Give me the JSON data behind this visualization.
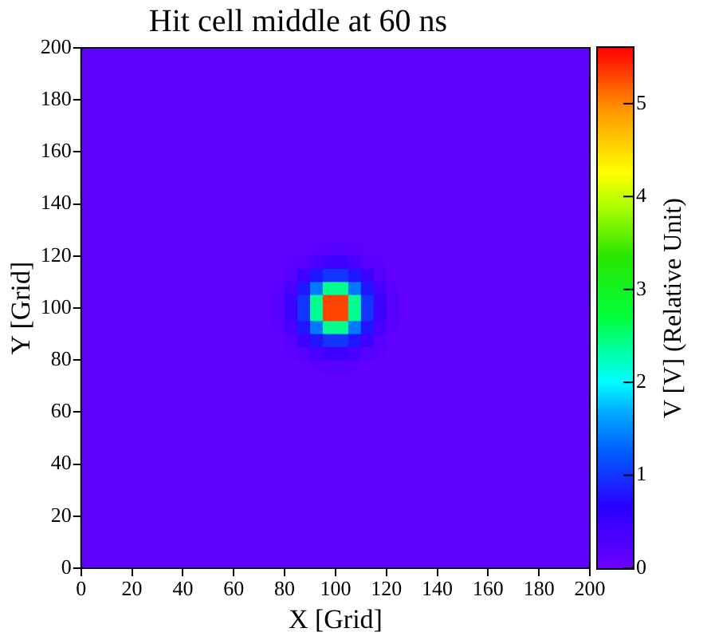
{
  "chart_data": {
    "type": "heatmap",
    "title": "Hit cell middle at 60 ns",
    "xlabel": "X [Grid]",
    "ylabel": "Y [Grid]",
    "clabel": "V [V] (Relative Unit)",
    "xlim": [
      0,
      200
    ],
    "xticks": [
      0,
      20,
      40,
      60,
      80,
      100,
      120,
      140,
      160,
      180,
      200
    ],
    "ylim": [
      0,
      200
    ],
    "yticks": [
      0,
      20,
      40,
      60,
      80,
      100,
      120,
      140,
      160,
      180,
      200
    ],
    "clim": [
      0,
      5.6
    ],
    "cticks": [
      0,
      1,
      2,
      3,
      4,
      5
    ],
    "x": [
      2.5,
      7.5,
      12.5,
      17.5,
      22.5,
      27.5,
      32.5,
      37.5,
      42.5,
      47.5,
      52.5,
      57.5,
      62.5,
      67.5,
      72.5,
      77.5,
      82.5,
      87.5,
      92.5,
      97.5,
      102.5,
      107.5,
      112.5,
      117.5,
      122.5,
      127.5,
      132.5,
      137.5,
      142.5,
      147.5,
      152.5,
      157.5,
      162.5,
      167.5,
      172.5,
      177.5,
      182.5,
      187.5,
      192.5,
      197.5
    ],
    "y": [
      197.5,
      192.5,
      187.5,
      182.5,
      177.5,
      172.5,
      167.5,
      162.5,
      157.5,
      152.5,
      147.5,
      142.5,
      137.5,
      132.5,
      127.5,
      122.5,
      117.5,
      112.5,
      107.5,
      102.5,
      97.5,
      92.5,
      87.5,
      82.5,
      77.5,
      72.5,
      67.5,
      62.5,
      57.5,
      52.5,
      47.5,
      42.5,
      37.5,
      32.5,
      27.5,
      22.5,
      17.5,
      12.5,
      7.5,
      2.5
    ],
    "cells": [
      [
        0.1,
        0.1,
        0.1,
        0.1,
        0.1,
        0.1,
        0.1,
        0.1,
        0.1,
        0.1,
        0.1,
        0.1,
        0.1,
        0.1,
        0.1,
        0.1,
        0.1,
        0.1,
        0.1,
        0.1,
        0.1,
        0.1,
        0.1,
        0.1,
        0.1,
        0.1,
        0.1,
        0.1,
        0.1,
        0.1,
        0.1,
        0.1,
        0.1,
        0.1,
        0.1,
        0.1,
        0.1,
        0.1,
        0.1,
        0.1
      ],
      [
        0.1,
        0.1,
        0.1,
        0.1,
        0.1,
        0.1,
        0.1,
        0.1,
        0.1,
        0.1,
        0.1,
        0.1,
        0.1,
        0.1,
        0.1,
        0.1,
        0.1,
        0.1,
        0.1,
        0.1,
        0.1,
        0.1,
        0.1,
        0.1,
        0.1,
        0.1,
        0.1,
        0.1,
        0.1,
        0.1,
        0.1,
        0.1,
        0.1,
        0.1,
        0.1,
        0.1,
        0.1,
        0.1,
        0.1,
        0.1
      ],
      [
        0.1,
        0.1,
        0.1,
        0.1,
        0.1,
        0.1,
        0.1,
        0.1,
        0.1,
        0.1,
        0.1,
        0.1,
        0.1,
        0.1,
        0.1,
        0.1,
        0.1,
        0.1,
        0.1,
        0.1,
        0.1,
        0.1,
        0.1,
        0.1,
        0.1,
        0.1,
        0.1,
        0.1,
        0.1,
        0.1,
        0.1,
        0.1,
        0.1,
        0.1,
        0.1,
        0.1,
        0.1,
        0.1,
        0.1,
        0.1
      ],
      [
        0.1,
        0.1,
        0.1,
        0.1,
        0.1,
        0.1,
        0.1,
        0.1,
        0.1,
        0.1,
        0.1,
        0.1,
        0.1,
        0.1,
        0.1,
        0.1,
        0.1,
        0.1,
        0.1,
        0.1,
        0.1,
        0.1,
        0.1,
        0.1,
        0.1,
        0.1,
        0.1,
        0.1,
        0.1,
        0.1,
        0.1,
        0.1,
        0.1,
        0.1,
        0.1,
        0.1,
        0.1,
        0.1,
        0.1,
        0.1
      ],
      [
        0.1,
        0.1,
        0.1,
        0.1,
        0.1,
        0.1,
        0.1,
        0.1,
        0.1,
        0.1,
        0.1,
        0.1,
        0.1,
        0.1,
        0.1,
        0.1,
        0.1,
        0.1,
        0.1,
        0.1,
        0.1,
        0.1,
        0.1,
        0.1,
        0.1,
        0.1,
        0.1,
        0.1,
        0.1,
        0.1,
        0.1,
        0.1,
        0.1,
        0.1,
        0.1,
        0.1,
        0.1,
        0.1,
        0.1,
        0.1
      ],
      [
        0.1,
        0.1,
        0.1,
        0.1,
        0.1,
        0.1,
        0.1,
        0.1,
        0.1,
        0.1,
        0.1,
        0.1,
        0.1,
        0.1,
        0.1,
        0.1,
        0.1,
        0.1,
        0.1,
        0.1,
        0.1,
        0.1,
        0.1,
        0.1,
        0.1,
        0.1,
        0.1,
        0.1,
        0.1,
        0.1,
        0.1,
        0.1,
        0.1,
        0.1,
        0.1,
        0.1,
        0.1,
        0.1,
        0.1,
        0.1
      ],
      [
        0.1,
        0.1,
        0.1,
        0.1,
        0.1,
        0.1,
        0.1,
        0.1,
        0.1,
        0.1,
        0.1,
        0.1,
        0.1,
        0.1,
        0.1,
        0.1,
        0.1,
        0.1,
        0.1,
        0.1,
        0.1,
        0.1,
        0.1,
        0.1,
        0.1,
        0.1,
        0.1,
        0.1,
        0.1,
        0.1,
        0.1,
        0.1,
        0.1,
        0.1,
        0.1,
        0.1,
        0.1,
        0.1,
        0.1,
        0.1
      ],
      [
        0.1,
        0.1,
        0.1,
        0.1,
        0.1,
        0.1,
        0.1,
        0.1,
        0.1,
        0.1,
        0.1,
        0.1,
        0.1,
        0.1,
        0.1,
        0.1,
        0.1,
        0.1,
        0.1,
        0.1,
        0.1,
        0.1,
        0.1,
        0.1,
        0.1,
        0.1,
        0.1,
        0.1,
        0.1,
        0.1,
        0.1,
        0.1,
        0.1,
        0.1,
        0.1,
        0.1,
        0.1,
        0.1,
        0.1,
        0.1
      ],
      [
        0.1,
        0.1,
        0.1,
        0.1,
        0.1,
        0.1,
        0.1,
        0.1,
        0.1,
        0.1,
        0.1,
        0.1,
        0.1,
        0.1,
        0.1,
        0.1,
        0.1,
        0.1,
        0.1,
        0.1,
        0.1,
        0.1,
        0.1,
        0.1,
        0.1,
        0.1,
        0.1,
        0.1,
        0.1,
        0.1,
        0.1,
        0.1,
        0.1,
        0.1,
        0.1,
        0.1,
        0.1,
        0.1,
        0.1,
        0.1
      ],
      [
        0.1,
        0.1,
        0.1,
        0.1,
        0.1,
        0.1,
        0.1,
        0.1,
        0.1,
        0.1,
        0.1,
        0.1,
        0.1,
        0.1,
        0.1,
        0.1,
        0.1,
        0.1,
        0.1,
        0.1,
        0.1,
        0.1,
        0.1,
        0.1,
        0.1,
        0.1,
        0.1,
        0.1,
        0.1,
        0.1,
        0.1,
        0.1,
        0.1,
        0.1,
        0.1,
        0.1,
        0.1,
        0.1,
        0.1,
        0.1
      ],
      [
        0.1,
        0.1,
        0.1,
        0.1,
        0.1,
        0.1,
        0.1,
        0.1,
        0.1,
        0.1,
        0.1,
        0.1,
        0.1,
        0.1,
        0.1,
        0.1,
        0.1,
        0.1,
        0.1,
        0.1,
        0.1,
        0.1,
        0.1,
        0.1,
        0.1,
        0.1,
        0.1,
        0.1,
        0.1,
        0.1,
        0.1,
        0.1,
        0.1,
        0.1,
        0.1,
        0.1,
        0.1,
        0.1,
        0.1,
        0.1
      ],
      [
        0.1,
        0.1,
        0.1,
        0.1,
        0.1,
        0.1,
        0.1,
        0.1,
        0.1,
        0.1,
        0.1,
        0.1,
        0.1,
        0.1,
        0.1,
        0.1,
        0.1,
        0.1,
        0.1,
        0.1,
        0.1,
        0.1,
        0.1,
        0.1,
        0.1,
        0.1,
        0.1,
        0.1,
        0.1,
        0.1,
        0.1,
        0.1,
        0.1,
        0.1,
        0.1,
        0.1,
        0.1,
        0.1,
        0.1,
        0.1
      ],
      [
        0.1,
        0.1,
        0.1,
        0.1,
        0.1,
        0.1,
        0.1,
        0.1,
        0.1,
        0.1,
        0.1,
        0.1,
        0.1,
        0.1,
        0.1,
        0.1,
        0.1,
        0.1,
        0.1,
        0.1,
        0.1,
        0.1,
        0.1,
        0.1,
        0.1,
        0.1,
        0.1,
        0.1,
        0.1,
        0.1,
        0.1,
        0.1,
        0.1,
        0.1,
        0.1,
        0.1,
        0.1,
        0.1,
        0.1,
        0.1
      ],
      [
        0.1,
        0.1,
        0.1,
        0.1,
        0.1,
        0.1,
        0.1,
        0.1,
        0.1,
        0.1,
        0.1,
        0.1,
        0.1,
        0.1,
        0.1,
        0.1,
        0.1,
        0.1,
        0.1,
        0.1,
        0.1,
        0.1,
        0.1,
        0.1,
        0.1,
        0.1,
        0.1,
        0.1,
        0.1,
        0.1,
        0.1,
        0.1,
        0.1,
        0.1,
        0.1,
        0.1,
        0.1,
        0.1,
        0.1,
        0.1
      ],
      [
        0.1,
        0.1,
        0.1,
        0.1,
        0.1,
        0.1,
        0.1,
        0.1,
        0.1,
        0.1,
        0.1,
        0.1,
        0.1,
        0.1,
        0.1,
        0.1,
        0.1,
        0.1,
        0.1,
        0.1,
        0.1,
        0.1,
        0.1,
        0.1,
        0.1,
        0.1,
        0.1,
        0.1,
        0.1,
        0.1,
        0.1,
        0.1,
        0.1,
        0.1,
        0.1,
        0.1,
        0.1,
        0.1,
        0.1,
        0.1
      ],
      [
        0.1,
        0.1,
        0.1,
        0.1,
        0.1,
        0.1,
        0.1,
        0.1,
        0.1,
        0.1,
        0.1,
        0.1,
        0.1,
        0.1,
        0.1,
        0.1,
        0.1,
        0.1,
        0.15,
        0.2,
        0.2,
        0.15,
        0.1,
        0.1,
        0.1,
        0.1,
        0.1,
        0.1,
        0.1,
        0.1,
        0.1,
        0.1,
        0.1,
        0.1,
        0.1,
        0.1,
        0.1,
        0.1,
        0.1,
        0.1
      ],
      [
        0.1,
        0.1,
        0.1,
        0.1,
        0.1,
        0.1,
        0.1,
        0.1,
        0.1,
        0.1,
        0.1,
        0.1,
        0.1,
        0.1,
        0.1,
        0.1,
        0.15,
        0.2,
        0.35,
        0.45,
        0.45,
        0.35,
        0.2,
        0.15,
        0.1,
        0.1,
        0.1,
        0.1,
        0.1,
        0.1,
        0.1,
        0.1,
        0.1,
        0.1,
        0.1,
        0.1,
        0.1,
        0.1,
        0.1,
        0.1
      ],
      [
        0.1,
        0.1,
        0.1,
        0.1,
        0.1,
        0.1,
        0.1,
        0.1,
        0.1,
        0.1,
        0.1,
        0.1,
        0.1,
        0.1,
        0.1,
        0.1,
        0.2,
        0.45,
        0.8,
        1.0,
        1.0,
        0.8,
        0.45,
        0.2,
        0.1,
        0.1,
        0.1,
        0.1,
        0.1,
        0.1,
        0.1,
        0.1,
        0.1,
        0.1,
        0.1,
        0.1,
        0.1,
        0.1,
        0.1,
        0.1
      ],
      [
        0.1,
        0.1,
        0.1,
        0.1,
        0.1,
        0.1,
        0.1,
        0.1,
        0.1,
        0.1,
        0.1,
        0.1,
        0.1,
        0.1,
        0.1,
        0.15,
        0.35,
        0.8,
        1.4,
        2.4,
        2.4,
        1.4,
        0.8,
        0.35,
        0.15,
        0.1,
        0.1,
        0.1,
        0.1,
        0.1,
        0.1,
        0.1,
        0.1,
        0.1,
        0.1,
        0.1,
        0.1,
        0.1,
        0.1,
        0.1
      ],
      [
        0.1,
        0.1,
        0.1,
        0.1,
        0.1,
        0.1,
        0.1,
        0.1,
        0.1,
        0.1,
        0.1,
        0.1,
        0.1,
        0.1,
        0.1,
        0.2,
        0.45,
        1.0,
        2.4,
        5.3,
        5.3,
        2.4,
        1.0,
        0.45,
        0.2,
        0.1,
        0.1,
        0.1,
        0.1,
        0.1,
        0.1,
        0.1,
        0.1,
        0.1,
        0.1,
        0.1,
        0.1,
        0.1,
        0.1,
        0.1
      ],
      [
        0.1,
        0.1,
        0.1,
        0.1,
        0.1,
        0.1,
        0.1,
        0.1,
        0.1,
        0.1,
        0.1,
        0.1,
        0.1,
        0.1,
        0.1,
        0.2,
        0.45,
        1.0,
        2.4,
        5.3,
        5.3,
        2.4,
        1.0,
        0.45,
        0.2,
        0.1,
        0.1,
        0.1,
        0.1,
        0.1,
        0.1,
        0.1,
        0.1,
        0.1,
        0.1,
        0.1,
        0.1,
        0.1,
        0.1,
        0.1
      ],
      [
        0.1,
        0.1,
        0.1,
        0.1,
        0.1,
        0.1,
        0.1,
        0.1,
        0.1,
        0.1,
        0.1,
        0.1,
        0.1,
        0.1,
        0.1,
        0.15,
        0.35,
        0.8,
        1.4,
        2.4,
        2.4,
        1.4,
        0.8,
        0.35,
        0.15,
        0.1,
        0.1,
        0.1,
        0.1,
        0.1,
        0.1,
        0.1,
        0.1,
        0.1,
        0.1,
        0.1,
        0.1,
        0.1,
        0.1,
        0.1
      ],
      [
        0.1,
        0.1,
        0.1,
        0.1,
        0.1,
        0.1,
        0.1,
        0.1,
        0.1,
        0.1,
        0.1,
        0.1,
        0.1,
        0.1,
        0.1,
        0.1,
        0.2,
        0.45,
        0.8,
        1.0,
        1.0,
        0.8,
        0.45,
        0.2,
        0.1,
        0.1,
        0.1,
        0.1,
        0.1,
        0.1,
        0.1,
        0.1,
        0.1,
        0.1,
        0.1,
        0.1,
        0.1,
        0.1,
        0.1,
        0.1
      ],
      [
        0.1,
        0.1,
        0.1,
        0.1,
        0.1,
        0.1,
        0.1,
        0.1,
        0.1,
        0.1,
        0.1,
        0.1,
        0.1,
        0.1,
        0.1,
        0.1,
        0.15,
        0.2,
        0.35,
        0.45,
        0.45,
        0.35,
        0.2,
        0.15,
        0.1,
        0.1,
        0.1,
        0.1,
        0.1,
        0.1,
        0.1,
        0.1,
        0.1,
        0.1,
        0.1,
        0.1,
        0.1,
        0.1,
        0.1,
        0.1
      ],
      [
        0.1,
        0.1,
        0.1,
        0.1,
        0.1,
        0.1,
        0.1,
        0.1,
        0.1,
        0.1,
        0.1,
        0.1,
        0.1,
        0.1,
        0.1,
        0.1,
        0.1,
        0.1,
        0.15,
        0.2,
        0.2,
        0.15,
        0.1,
        0.1,
        0.1,
        0.1,
        0.1,
        0.1,
        0.1,
        0.1,
        0.1,
        0.1,
        0.1,
        0.1,
        0.1,
        0.1,
        0.1,
        0.1,
        0.1,
        0.1
      ],
      [
        0.1,
        0.1,
        0.1,
        0.1,
        0.1,
        0.1,
        0.1,
        0.1,
        0.1,
        0.1,
        0.1,
        0.1,
        0.1,
        0.1,
        0.1,
        0.1,
        0.1,
        0.1,
        0.1,
        0.1,
        0.1,
        0.1,
        0.1,
        0.1,
        0.1,
        0.1,
        0.1,
        0.1,
        0.1,
        0.1,
        0.1,
        0.1,
        0.1,
        0.1,
        0.1,
        0.1,
        0.1,
        0.1,
        0.1,
        0.1
      ],
      [
        0.1,
        0.1,
        0.1,
        0.1,
        0.1,
        0.1,
        0.1,
        0.1,
        0.1,
        0.1,
        0.1,
        0.1,
        0.1,
        0.1,
        0.1,
        0.1,
        0.1,
        0.1,
        0.1,
        0.1,
        0.1,
        0.1,
        0.1,
        0.1,
        0.1,
        0.1,
        0.1,
        0.1,
        0.1,
        0.1,
        0.1,
        0.1,
        0.1,
        0.1,
        0.1,
        0.1,
        0.1,
        0.1,
        0.1,
        0.1
      ],
      [
        0.1,
        0.1,
        0.1,
        0.1,
        0.1,
        0.1,
        0.1,
        0.1,
        0.1,
        0.1,
        0.1,
        0.1,
        0.1,
        0.1,
        0.1,
        0.1,
        0.1,
        0.1,
        0.1,
        0.1,
        0.1,
        0.1,
        0.1,
        0.1,
        0.1,
        0.1,
        0.1,
        0.1,
        0.1,
        0.1,
        0.1,
        0.1,
        0.1,
        0.1,
        0.1,
        0.1,
        0.1,
        0.1,
        0.1,
        0.1
      ],
      [
        0.1,
        0.1,
        0.1,
        0.1,
        0.1,
        0.1,
        0.1,
        0.1,
        0.1,
        0.1,
        0.1,
        0.1,
        0.1,
        0.1,
        0.1,
        0.1,
        0.1,
        0.1,
        0.1,
        0.1,
        0.1,
        0.1,
        0.1,
        0.1,
        0.1,
        0.1,
        0.1,
        0.1,
        0.1,
        0.1,
        0.1,
        0.1,
        0.1,
        0.1,
        0.1,
        0.1,
        0.1,
        0.1,
        0.1,
        0.1
      ],
      [
        0.1,
        0.1,
        0.1,
        0.1,
        0.1,
        0.1,
        0.1,
        0.1,
        0.1,
        0.1,
        0.1,
        0.1,
        0.1,
        0.1,
        0.1,
        0.1,
        0.1,
        0.1,
        0.1,
        0.1,
        0.1,
        0.1,
        0.1,
        0.1,
        0.1,
        0.1,
        0.1,
        0.1,
        0.1,
        0.1,
        0.1,
        0.1,
        0.1,
        0.1,
        0.1,
        0.1,
        0.1,
        0.1,
        0.1,
        0.1
      ],
      [
        0.1,
        0.1,
        0.1,
        0.1,
        0.1,
        0.1,
        0.1,
        0.1,
        0.1,
        0.1,
        0.1,
        0.1,
        0.1,
        0.1,
        0.1,
        0.1,
        0.1,
        0.1,
        0.1,
        0.1,
        0.1,
        0.1,
        0.1,
        0.1,
        0.1,
        0.1,
        0.1,
        0.1,
        0.1,
        0.1,
        0.1,
        0.1,
        0.1,
        0.1,
        0.1,
        0.1,
        0.1,
        0.1,
        0.1,
        0.1
      ],
      [
        0.1,
        0.1,
        0.1,
        0.1,
        0.1,
        0.1,
        0.1,
        0.1,
        0.1,
        0.1,
        0.1,
        0.1,
        0.1,
        0.1,
        0.1,
        0.1,
        0.1,
        0.1,
        0.1,
        0.1,
        0.1,
        0.1,
        0.1,
        0.1,
        0.1,
        0.1,
        0.1,
        0.1,
        0.1,
        0.1,
        0.1,
        0.1,
        0.1,
        0.1,
        0.1,
        0.1,
        0.1,
        0.1,
        0.1,
        0.1
      ],
      [
        0.1,
        0.1,
        0.1,
        0.1,
        0.1,
        0.1,
        0.1,
        0.1,
        0.1,
        0.1,
        0.1,
        0.1,
        0.1,
        0.1,
        0.1,
        0.1,
        0.1,
        0.1,
        0.1,
        0.1,
        0.1,
        0.1,
        0.1,
        0.1,
        0.1,
        0.1,
        0.1,
        0.1,
        0.1,
        0.1,
        0.1,
        0.1,
        0.1,
        0.1,
        0.1,
        0.1,
        0.1,
        0.1,
        0.1,
        0.1
      ],
      [
        0.1,
        0.1,
        0.1,
        0.1,
        0.1,
        0.1,
        0.1,
        0.1,
        0.1,
        0.1,
        0.1,
        0.1,
        0.1,
        0.1,
        0.1,
        0.1,
        0.1,
        0.1,
        0.1,
        0.1,
        0.1,
        0.1,
        0.1,
        0.1,
        0.1,
        0.1,
        0.1,
        0.1,
        0.1,
        0.1,
        0.1,
        0.1,
        0.1,
        0.1,
        0.1,
        0.1,
        0.1,
        0.1,
        0.1,
        0.1
      ],
      [
        0.1,
        0.1,
        0.1,
        0.1,
        0.1,
        0.1,
        0.1,
        0.1,
        0.1,
        0.1,
        0.1,
        0.1,
        0.1,
        0.1,
        0.1,
        0.1,
        0.1,
        0.1,
        0.1,
        0.1,
        0.1,
        0.1,
        0.1,
        0.1,
        0.1,
        0.1,
        0.1,
        0.1,
        0.1,
        0.1,
        0.1,
        0.1,
        0.1,
        0.1,
        0.1,
        0.1,
        0.1,
        0.1,
        0.1,
        0.1
      ],
      [
        0.1,
        0.1,
        0.1,
        0.1,
        0.1,
        0.1,
        0.1,
        0.1,
        0.1,
        0.1,
        0.1,
        0.1,
        0.1,
        0.1,
        0.1,
        0.1,
        0.1,
        0.1,
        0.1,
        0.1,
        0.1,
        0.1,
        0.1,
        0.1,
        0.1,
        0.1,
        0.1,
        0.1,
        0.1,
        0.1,
        0.1,
        0.1,
        0.1,
        0.1,
        0.1,
        0.1,
        0.1,
        0.1,
        0.1,
        0.1
      ],
      [
        0.1,
        0.1,
        0.1,
        0.1,
        0.1,
        0.1,
        0.1,
        0.1,
        0.1,
        0.1,
        0.1,
        0.1,
        0.1,
        0.1,
        0.1,
        0.1,
        0.1,
        0.1,
        0.1,
        0.1,
        0.1,
        0.1,
        0.1,
        0.1,
        0.1,
        0.1,
        0.1,
        0.1,
        0.1,
        0.1,
        0.1,
        0.1,
        0.1,
        0.1,
        0.1,
        0.1,
        0.1,
        0.1,
        0.1,
        0.1
      ],
      [
        0.1,
        0.1,
        0.1,
        0.1,
        0.1,
        0.1,
        0.1,
        0.1,
        0.1,
        0.1,
        0.1,
        0.1,
        0.1,
        0.1,
        0.1,
        0.1,
        0.1,
        0.1,
        0.1,
        0.1,
        0.1,
        0.1,
        0.1,
        0.1,
        0.1,
        0.1,
        0.1,
        0.1,
        0.1,
        0.1,
        0.1,
        0.1,
        0.1,
        0.1,
        0.1,
        0.1,
        0.1,
        0.1,
        0.1,
        0.1
      ],
      [
        0.1,
        0.1,
        0.1,
        0.1,
        0.1,
        0.1,
        0.1,
        0.1,
        0.1,
        0.1,
        0.1,
        0.1,
        0.1,
        0.1,
        0.1,
        0.1,
        0.1,
        0.1,
        0.1,
        0.1,
        0.1,
        0.1,
        0.1,
        0.1,
        0.1,
        0.1,
        0.1,
        0.1,
        0.1,
        0.1,
        0.1,
        0.1,
        0.1,
        0.1,
        0.1,
        0.1,
        0.1,
        0.1,
        0.1,
        0.1
      ],
      [
        0.1,
        0.1,
        0.1,
        0.1,
        0.1,
        0.1,
        0.1,
        0.1,
        0.1,
        0.1,
        0.1,
        0.1,
        0.1,
        0.1,
        0.1,
        0.1,
        0.1,
        0.1,
        0.1,
        0.1,
        0.1,
        0.1,
        0.1,
        0.1,
        0.1,
        0.1,
        0.1,
        0.1,
        0.1,
        0.1,
        0.1,
        0.1,
        0.1,
        0.1,
        0.1,
        0.1,
        0.1,
        0.1,
        0.1,
        0.1
      ]
    ]
  }
}
